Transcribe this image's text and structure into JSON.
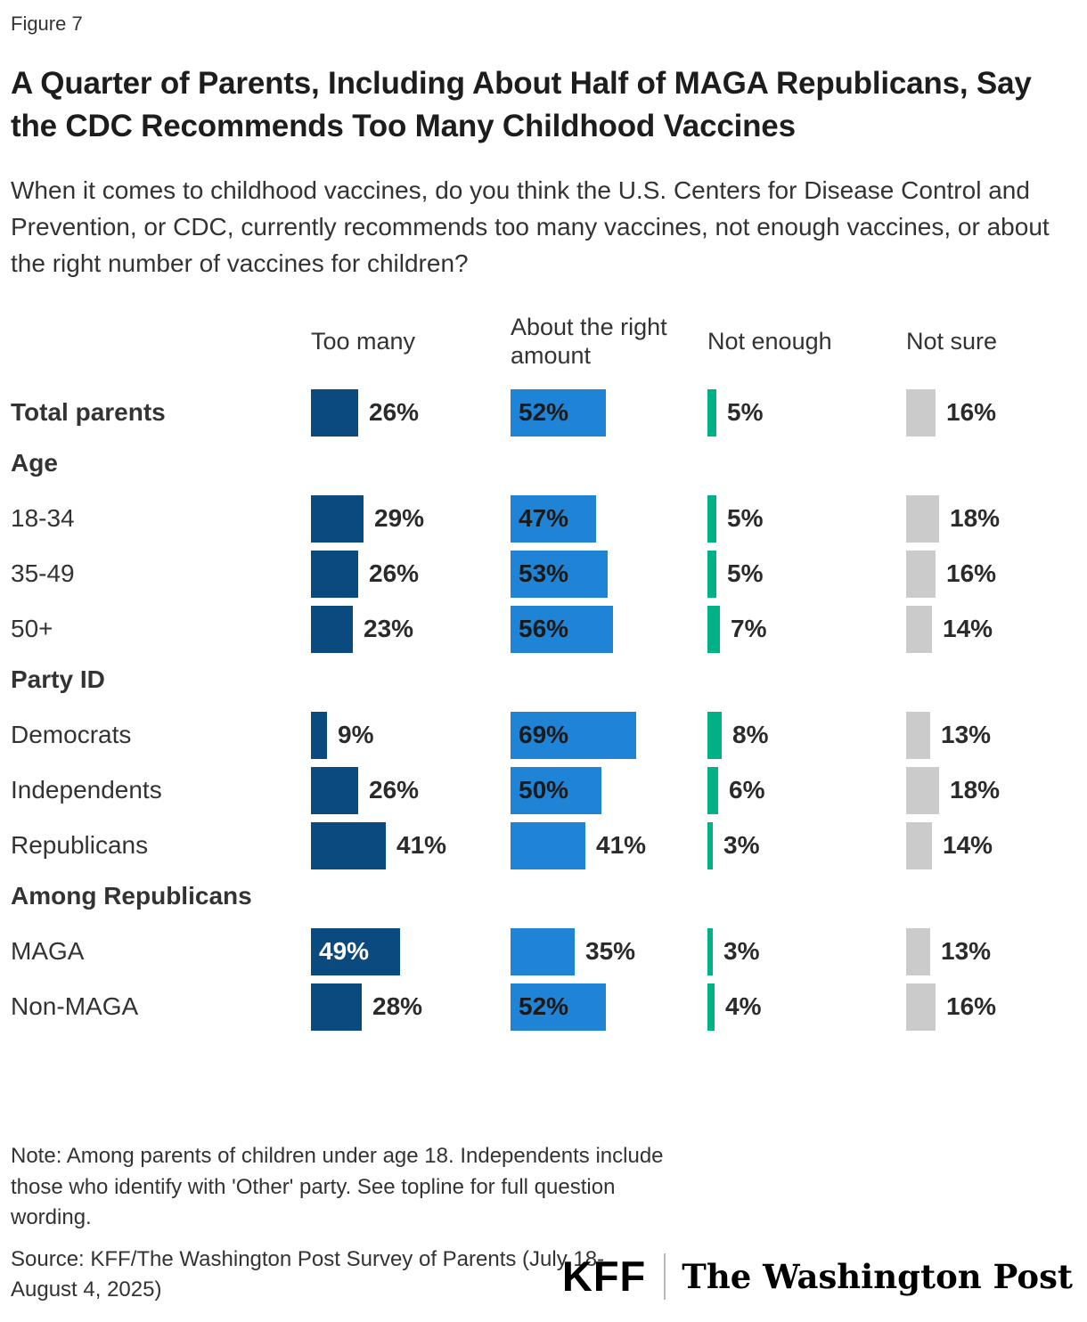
{
  "figure_label": "Figure 7",
  "title": "A Quarter of Parents, Including About Half of MAGA Republicans, Say the CDC Recommends Too Many Childhood Vaccines",
  "subtitle": "When it comes to childhood vaccines, do you think the U.S. Centers for Disease Control and Prevention, or CDC, currently recommends too many vaccines, not enough vaccines, or about the right number of vaccines for children?",
  "note": "Note: Among parents of children under age 18. Independents include those who identify with 'Other' party. See topline for full question wording.",
  "source": "Source: KFF/The Washington Post Survey of Parents (July 18-August 4, 2025)",
  "logos": {
    "kff_label": "KFF",
    "wapo_label": "The Washington Post"
  },
  "chart_data": {
    "type": "bar",
    "orientation": "horizontal",
    "unit": "%",
    "xlim": [
      0,
      100
    ],
    "grid": false,
    "legend_position": "column-headers-top",
    "columns": [
      "Too many",
      "About the right amount",
      "Not enough",
      "Not sure"
    ],
    "column_colors": [
      "#0b4a7f",
      "#1f83d6",
      "#00b187",
      "#cbcbcb"
    ],
    "label_inside_threshold": 45,
    "groups": [
      {
        "header": "",
        "rows": [
          {
            "label": "Total parents",
            "emphasis": true,
            "values": [
              26,
              52,
              5,
              16
            ]
          }
        ]
      },
      {
        "header": "Age",
        "rows": [
          {
            "label": "18-34",
            "emphasis": false,
            "values": [
              29,
              47,
              5,
              18
            ]
          },
          {
            "label": "35-49",
            "emphasis": false,
            "values": [
              26,
              53,
              5,
              16
            ]
          },
          {
            "label": "50+",
            "emphasis": false,
            "values": [
              23,
              56,
              7,
              14
            ]
          }
        ]
      },
      {
        "header": "Party ID",
        "rows": [
          {
            "label": "Democrats",
            "emphasis": false,
            "values": [
              9,
              69,
              8,
              13
            ]
          },
          {
            "label": "Independents",
            "emphasis": false,
            "values": [
              26,
              50,
              6,
              18
            ]
          },
          {
            "label": "Republicans",
            "emphasis": false,
            "values": [
              41,
              41,
              3,
              14
            ]
          }
        ]
      },
      {
        "header": "Among Republicans",
        "rows": [
          {
            "label": "MAGA",
            "emphasis": false,
            "values": [
              49,
              35,
              3,
              13
            ]
          },
          {
            "label": "Non-MAGA",
            "emphasis": false,
            "values": [
              28,
              52,
              4,
              16
            ]
          }
        ]
      }
    ]
  }
}
